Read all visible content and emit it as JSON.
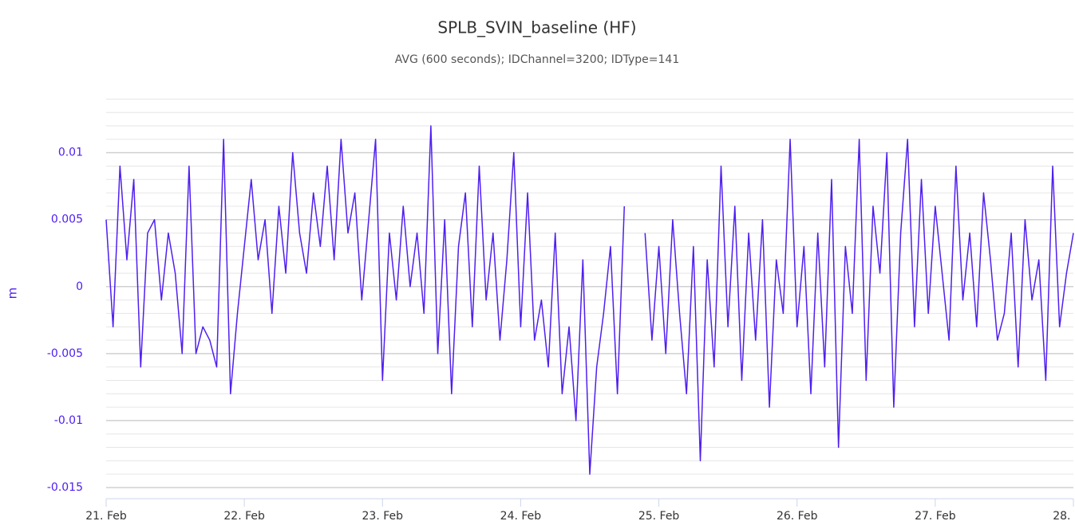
{
  "chart_data": {
    "type": "line",
    "title": "SPLB_SVIN_baseline (HF)",
    "subtitle": "AVG (600 seconds); IDChannel=3200; IDType=141",
    "y_label": "m",
    "xlim": [
      0,
      7
    ],
    "xticks": [
      {
        "value": 0,
        "label": "21. Feb"
      },
      {
        "value": 1,
        "label": "22. Feb"
      },
      {
        "value": 2,
        "label": "23. Feb"
      },
      {
        "value": 3,
        "label": "24. Feb"
      },
      {
        "value": 4,
        "label": "25. Feb"
      },
      {
        "value": 5,
        "label": "26. Feb"
      },
      {
        "value": 6,
        "label": "27. Feb"
      },
      {
        "value": 7,
        "label": "28. Feb"
      }
    ],
    "ylim": [
      -0.015,
      0.0145
    ],
    "yticks": [
      -0.015,
      -0.01,
      -0.005,
      0,
      0.005,
      0.01
    ],
    "yminorticks": [
      -0.014,
      -0.013,
      -0.012,
      -0.011,
      -0.009,
      -0.008,
      -0.007,
      -0.006,
      -0.004,
      -0.003,
      -0.002,
      -0.001,
      0.001,
      0.002,
      0.003,
      0.004,
      0.006,
      0.007,
      0.008,
      0.009,
      0.011,
      0.012,
      0.013,
      0.014
    ],
    "grid": true,
    "x": [
      0,
      0.05,
      0.1,
      0.15,
      0.2,
      0.25,
      0.3,
      0.35,
      0.4,
      0.45,
      0.5,
      0.55,
      0.6,
      0.65,
      0.7,
      0.75,
      0.8,
      0.85,
      0.9,
      0.95,
      1,
      1.05,
      1.1,
      1.15,
      1.2,
      1.25,
      1.3,
      1.35,
      1.4,
      1.45,
      1.5,
      1.55,
      1.6,
      1.65,
      1.7,
      1.75,
      1.8,
      1.85,
      1.9,
      1.95,
      2,
      2.05,
      2.1,
      2.15,
      2.2,
      2.25,
      2.3,
      2.35,
      2.4,
      2.45,
      2.5,
      2.55,
      2.6,
      2.65,
      2.7,
      2.75,
      2.8,
      2.85,
      2.9,
      2.95,
      3,
      3.05,
      3.1,
      3.15,
      3.2,
      3.25,
      3.3,
      3.35,
      3.4,
      3.45,
      3.5,
      3.55,
      3.6,
      3.65,
      3.7,
      3.75,
      3.8,
      3.85,
      3.9,
      3.95,
      4,
      4.05,
      4.1,
      4.15,
      4.2,
      4.25,
      4.3,
      4.35,
      4.4,
      4.45,
      4.5,
      4.55,
      4.6,
      4.65,
      4.7,
      4.75,
      4.8,
      4.85,
      4.9,
      4.95,
      5,
      5.05,
      5.1,
      5.15,
      5.2,
      5.25,
      5.3,
      5.35,
      5.4,
      5.45,
      5.5,
      5.55,
      5.6,
      5.65,
      5.7,
      5.75,
      5.8,
      5.85,
      5.9,
      5.95,
      6,
      6.05,
      6.1,
      6.15,
      6.2,
      6.25,
      6.3,
      6.35,
      6.4,
      6.45,
      6.5,
      6.55,
      6.6,
      6.65,
      6.7,
      6.75,
      6.8,
      6.85,
      6.9,
      6.95,
      7
    ],
    "series": [
      {
        "name": "SPLB_SVIN_baseline (HF)",
        "color": "#4f1ff0",
        "values": [
          0.005,
          -0.003,
          0.009,
          0.002,
          0.008,
          -0.006,
          0.004,
          0.005,
          -0.001,
          0.004,
          0.001,
          -0.005,
          0.009,
          -0.005,
          -0.003,
          -0.004,
          -0.006,
          0.011,
          -0.008,
          -0.002,
          0.003,
          0.008,
          0.002,
          0.005,
          -0.002,
          0.006,
          0.001,
          0.01,
          0.004,
          0.001,
          0.007,
          0.003,
          0.009,
          0.002,
          0.011,
          0.004,
          0.007,
          -0.001,
          0.005,
          0.011,
          -0.007,
          0.004,
          -0.001,
          0.006,
          0,
          0.004,
          -0.002,
          0.012,
          -0.005,
          0.005,
          -0.008,
          0.003,
          0.007,
          -0.003,
          0.009,
          -0.001,
          0.004,
          -0.004,
          0.002,
          0.01,
          -0.003,
          0.007,
          -0.004,
          -0.001,
          -0.006,
          0.004,
          -0.008,
          -0.003,
          -0.01,
          0.002,
          -0.014,
          -0.006,
          -0.002,
          0.003,
          -0.008,
          0.006,
          null,
          null,
          0.004,
          -0.004,
          0.003,
          -0.005,
          0.005,
          -0.002,
          -0.008,
          0.003,
          -0.013,
          0.002,
          -0.006,
          0.009,
          -0.003,
          0.006,
          -0.007,
          0.004,
          -0.004,
          0.005,
          -0.009,
          0.002,
          -0.002,
          0.011,
          -0.003,
          0.003,
          -0.008,
          0.004,
          -0.006,
          0.008,
          -0.012,
          0.003,
          -0.002,
          0.011,
          -0.007,
          0.006,
          0.001,
          0.01,
          -0.009,
          0.004,
          0.011,
          -0.003,
          0.008,
          -0.002,
          0.006,
          0.001,
          -0.004,
          0.009,
          -0.001,
          0.004,
          -0.003,
          0.007,
          0.002,
          -0.004,
          -0.002,
          0.004,
          -0.006,
          0.005,
          -0.001,
          0.002,
          -0.007,
          0.009,
          -0.003,
          0.001,
          0.004
        ]
      }
    ]
  }
}
